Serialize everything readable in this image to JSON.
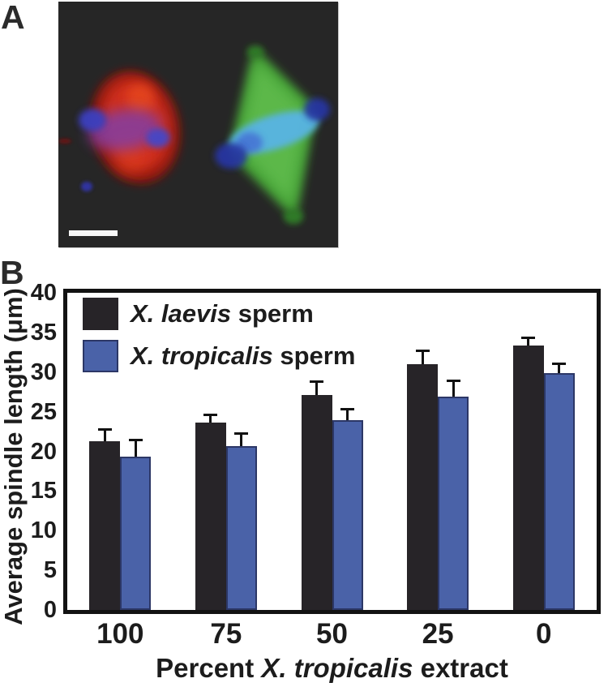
{
  "panels": {
    "a": {
      "label": "A"
    },
    "b": {
      "label": "B"
    }
  },
  "microscopy": {
    "background_color": "#262626",
    "left_spindle_color": "#d5301b",
    "right_spindle_color": "#5cb84a",
    "chromatin_blue": "#3a3fc0",
    "chromatin_cyan": "#58b4e4",
    "scale_bar_color": "#f7f7f7"
  },
  "chart_data": {
    "type": "bar",
    "categories": [
      "100",
      "75",
      "50",
      "25",
      "0"
    ],
    "series": [
      {
        "name": "X. laevis sperm",
        "name_italic": "X. laevis",
        "name_rest": " sperm",
        "color": "#272428",
        "values": [
          21.3,
          23.6,
          27.1,
          31.0,
          33.4
        ],
        "errors": [
          1.4,
          1.0,
          1.6,
          1.6,
          0.9
        ]
      },
      {
        "name": "X. tropicalis sperm",
        "name_italic": "X. tropicalis",
        "name_rest": " sperm",
        "color": "#4a62a8",
        "border_color": "#2c3766",
        "values": [
          19.3,
          20.7,
          23.9,
          26.9,
          29.9
        ],
        "errors": [
          2.1,
          1.5,
          1.4,
          2.0,
          1.1
        ]
      }
    ],
    "xlabel": "Percent X. tropicalis extract",
    "xlabel_pre": "Percent ",
    "xlabel_italic": "X. tropicalis",
    "xlabel_post": " extract",
    "ylabel": "Average spindle length (μm)",
    "ylim": [
      0,
      40
    ],
    "yticks": [
      0,
      5,
      10,
      15,
      20,
      25,
      30,
      35,
      40
    ],
    "legend_position": "top-left",
    "grid": false,
    "error_bar_color": "#111111",
    "axis_color": "#121212"
  }
}
